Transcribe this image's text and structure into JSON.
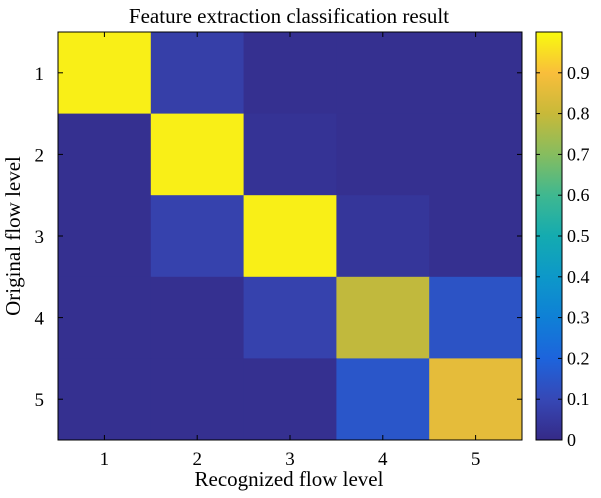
{
  "chart_data": {
    "type": "heatmap",
    "title": "Feature extraction classification result",
    "xlabel": "Recognized flow level",
    "ylabel": "Original flow level",
    "x_categories": [
      "1",
      "2",
      "3",
      "4",
      "5"
    ],
    "y_categories": [
      "1",
      "2",
      "3",
      "4",
      "5"
    ],
    "values": [
      [
        0.98,
        0.07,
        0.02,
        0.02,
        0.02
      ],
      [
        0.02,
        0.98,
        0.03,
        0.02,
        0.02
      ],
      [
        0.02,
        0.08,
        0.98,
        0.04,
        0.02
      ],
      [
        0.02,
        0.02,
        0.08,
        0.79,
        0.14
      ],
      [
        0.02,
        0.02,
        0.02,
        0.15,
        0.86
      ]
    ],
    "colorbar": {
      "range": [
        0,
        1
      ],
      "ticks": [
        0,
        0.1,
        0.2,
        0.3,
        0.4,
        0.5,
        0.6,
        0.7,
        0.8,
        0.9
      ],
      "tick_labels": [
        "0",
        "0.1",
        "0.2",
        "0.3",
        "0.4",
        "0.5",
        "0.6",
        "0.7",
        "0.8",
        "0.9"
      ],
      "colormap": "parula"
    }
  }
}
